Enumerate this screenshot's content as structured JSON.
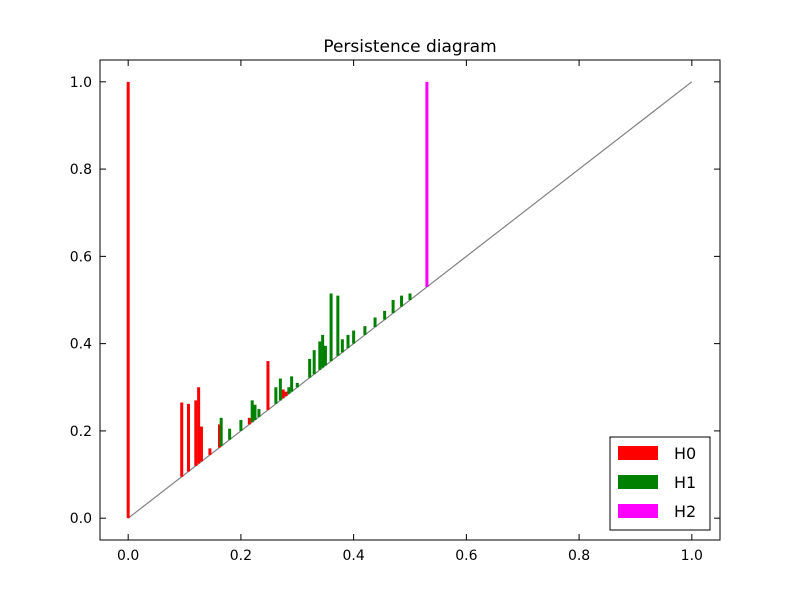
{
  "chart_data": {
    "type": "scatter",
    "title": "Persistence diagram",
    "xlabel": "",
    "ylabel": "",
    "xlim": [
      -0.05,
      1.05
    ],
    "ylim": [
      -0.05,
      1.05
    ],
    "xticks": [
      "0.0",
      "0.2",
      "0.4",
      "0.6",
      "0.8",
      "1.0"
    ],
    "yticks": [
      "0.0",
      "0.2",
      "0.4",
      "0.6",
      "0.8",
      "1.0"
    ],
    "xtick_values": [
      0.0,
      0.2,
      0.4,
      0.6,
      0.8,
      1.0
    ],
    "ytick_values": [
      0.0,
      0.2,
      0.4,
      0.6,
      0.8,
      1.0
    ],
    "grid": false,
    "legend_position": "bottom-right",
    "diagonal": {
      "from": [
        0,
        0
      ],
      "to": [
        1,
        1
      ],
      "color": "#808080"
    },
    "series": [
      {
        "name": "H0",
        "color": "#ff0000",
        "bars": [
          {
            "birth": 0.0,
            "death": 1.0
          },
          {
            "birth": 0.095,
            "death": 0.265
          },
          {
            "birth": 0.107,
            "death": 0.262
          },
          {
            "birth": 0.12,
            "death": 0.27
          },
          {
            "birth": 0.125,
            "death": 0.3
          },
          {
            "birth": 0.13,
            "death": 0.21
          },
          {
            "birth": 0.145,
            "death": 0.16
          },
          {
            "birth": 0.162,
            "death": 0.215
          },
          {
            "birth": 0.215,
            "death": 0.23
          },
          {
            "birth": 0.248,
            "death": 0.36
          },
          {
            "birth": 0.275,
            "death": 0.295
          },
          {
            "birth": 0.28,
            "death": 0.29
          }
        ]
      },
      {
        "name": "H1",
        "color": "#008000",
        "bars": [
          {
            "birth": 0.165,
            "death": 0.23
          },
          {
            "birth": 0.18,
            "death": 0.205
          },
          {
            "birth": 0.2,
            "death": 0.225
          },
          {
            "birth": 0.22,
            "death": 0.27
          },
          {
            "birth": 0.225,
            "death": 0.26
          },
          {
            "birth": 0.232,
            "death": 0.25
          },
          {
            "birth": 0.262,
            "death": 0.3
          },
          {
            "birth": 0.27,
            "death": 0.32
          },
          {
            "birth": 0.285,
            "death": 0.3
          },
          {
            "birth": 0.29,
            "death": 0.325
          },
          {
            "birth": 0.3,
            "death": 0.31
          },
          {
            "birth": 0.322,
            "death": 0.365
          },
          {
            "birth": 0.33,
            "death": 0.385
          },
          {
            "birth": 0.34,
            "death": 0.405
          },
          {
            "birth": 0.345,
            "death": 0.42
          },
          {
            "birth": 0.35,
            "death": 0.395
          },
          {
            "birth": 0.36,
            "death": 0.515
          },
          {
            "birth": 0.372,
            "death": 0.51
          },
          {
            "birth": 0.38,
            "death": 0.41
          },
          {
            "birth": 0.39,
            "death": 0.42
          },
          {
            "birth": 0.4,
            "death": 0.43
          },
          {
            "birth": 0.42,
            "death": 0.44
          },
          {
            "birth": 0.438,
            "death": 0.46
          },
          {
            "birth": 0.455,
            "death": 0.475
          },
          {
            "birth": 0.47,
            "death": 0.5
          },
          {
            "birth": 0.485,
            "death": 0.51
          },
          {
            "birth": 0.5,
            "death": 0.515
          }
        ]
      },
      {
        "name": "H2",
        "color": "#ff00ff",
        "bars": [
          {
            "birth": 0.53,
            "death": 1.0
          }
        ]
      }
    ]
  }
}
